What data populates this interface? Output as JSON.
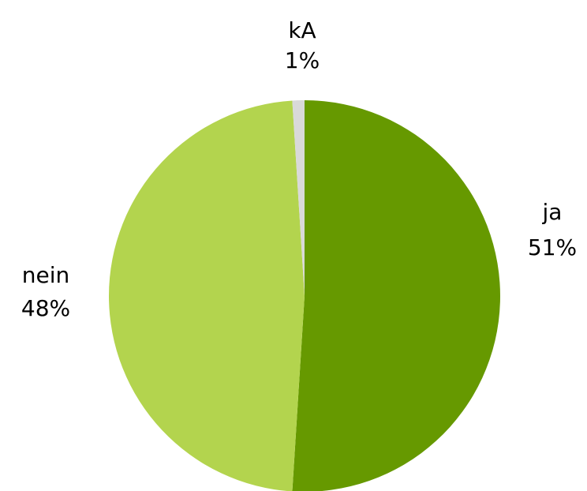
{
  "chart_data": {
    "type": "pie",
    "categories": [
      "ja",
      "nein",
      "kA"
    ],
    "values": [
      51,
      48,
      1
    ],
    "value_labels": [
      "51%",
      "48%",
      "1%"
    ],
    "colors": [
      "#669900",
      "#b3d44e",
      "#d9d9d9"
    ]
  }
}
